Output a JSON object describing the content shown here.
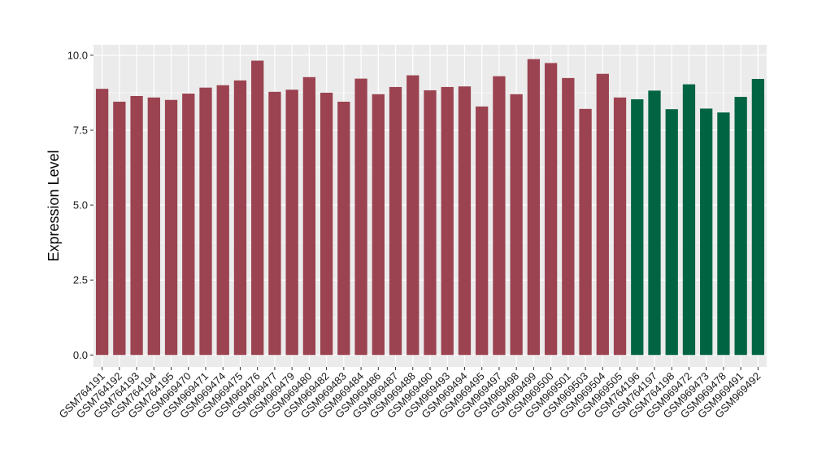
{
  "chart_data": {
    "type": "bar",
    "title": "",
    "xlabel": "",
    "ylabel": "Expression Level",
    "ylim": [
      -0.4,
      10.35
    ],
    "yticks": [
      0.0,
      2.5,
      5.0,
      7.5,
      10.0
    ],
    "ytick_labels": [
      "0.0",
      "2.5",
      "5.0",
      "7.5",
      "10.0"
    ],
    "grid": true,
    "legend": "none",
    "background_color": "#ebebeb",
    "gridline_color": "#ffffff",
    "categories": [
      "GSM764191",
      "GSM764192",
      "GSM764193",
      "GSM764194",
      "GSM764195",
      "GSM969470",
      "GSM969471",
      "GSM969474",
      "GSM969475",
      "GSM969476",
      "GSM969477",
      "GSM969479",
      "GSM969480",
      "GSM969482",
      "GSM969483",
      "GSM969484",
      "GSM969486",
      "GSM969487",
      "GSM969488",
      "GSM969490",
      "GSM969493",
      "GSM969494",
      "GSM969495",
      "GSM969497",
      "GSM969498",
      "GSM969499",
      "GSM969500",
      "GSM969501",
      "GSM969503",
      "GSM969504",
      "GSM969505",
      "GSM764196",
      "GSM764197",
      "GSM764198",
      "GSM969472",
      "GSM969473",
      "GSM969478",
      "GSM969491",
      "GSM969492"
    ],
    "values": [
      8.88,
      8.45,
      8.64,
      8.59,
      8.51,
      8.72,
      8.92,
      9.0,
      9.16,
      9.82,
      8.78,
      8.85,
      9.27,
      8.75,
      8.45,
      9.22,
      8.7,
      8.94,
      9.33,
      8.83,
      8.94,
      8.96,
      8.29,
      9.3,
      8.7,
      9.87,
      9.74,
      9.24,
      8.21,
      9.38,
      8.59,
      8.53,
      8.82,
      8.2,
      9.03,
      8.22,
      8.09,
      8.61,
      9.21
    ],
    "groups": [
      {
        "color": "#9b4350",
        "count": 31
      },
      {
        "color": "#006443",
        "count": 8
      }
    ]
  }
}
